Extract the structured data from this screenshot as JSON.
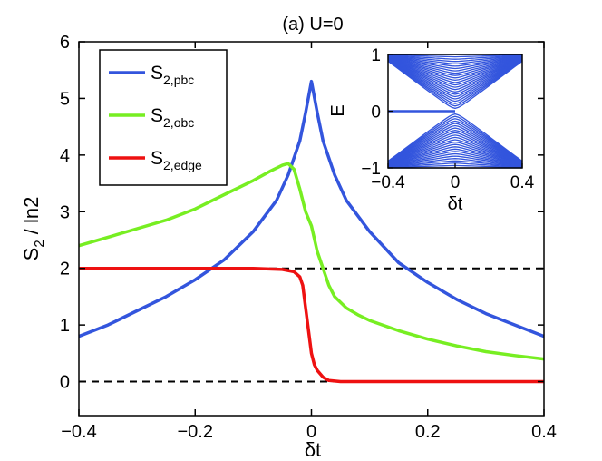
{
  "chart_data": [
    {
      "type": "line",
      "title": "(a) U=0",
      "xlabel": "δt",
      "ylabel": "S",
      "ylabel_sub": "2",
      "ylabel_suffix": " / ln2",
      "xlim": [
        -0.4,
        0.4
      ],
      "ylim": [
        -0.6,
        6
      ],
      "xticks": [
        -0.4,
        -0.2,
        0,
        0.2,
        0.4
      ],
      "xtick_labels": [
        "−0.4",
        "−0.2",
        "0",
        "0.2",
        "0.4"
      ],
      "yticks": [
        0,
        1,
        2,
        3,
        4,
        5,
        6
      ],
      "ytick_labels": [
        "0",
        "1",
        "2",
        "3",
        "4",
        "5",
        "6"
      ],
      "legend_position": "top-left",
      "series": [
        {
          "name": "S2,pbc",
          "label_main": "S",
          "label_sub": "2,pbc",
          "color": "#3355dd",
          "x": [
            -0.4,
            -0.35,
            -0.3,
            -0.25,
            -0.2,
            -0.15,
            -0.1,
            -0.06,
            -0.04,
            -0.02,
            -0.01,
            0,
            0.01,
            0.02,
            0.04,
            0.06,
            0.1,
            0.15,
            0.2,
            0.25,
            0.3,
            0.35,
            0.4
          ],
          "y": [
            0.8,
            1.0,
            1.25,
            1.5,
            1.8,
            2.15,
            2.65,
            3.2,
            3.65,
            4.25,
            4.75,
            5.3,
            4.75,
            4.25,
            3.65,
            3.2,
            2.65,
            2.1,
            1.75,
            1.45,
            1.2,
            1.0,
            0.8
          ]
        },
        {
          "name": "S2,obc",
          "label_main": "S",
          "label_sub": "2,obc",
          "color": "#77ee22",
          "x": [
            -0.4,
            -0.35,
            -0.3,
            -0.25,
            -0.2,
            -0.15,
            -0.1,
            -0.07,
            -0.05,
            -0.04,
            -0.03,
            -0.02,
            -0.01,
            0,
            0.01,
            0.02,
            0.03,
            0.04,
            0.06,
            0.08,
            0.1,
            0.15,
            0.2,
            0.25,
            0.3,
            0.35,
            0.4
          ],
          "y": [
            2.4,
            2.55,
            2.7,
            2.85,
            3.05,
            3.3,
            3.55,
            3.72,
            3.82,
            3.85,
            3.75,
            3.4,
            3.0,
            2.75,
            2.3,
            2.0,
            1.7,
            1.5,
            1.3,
            1.18,
            1.08,
            0.9,
            0.75,
            0.63,
            0.53,
            0.46,
            0.4
          ]
        },
        {
          "name": "S2,edge",
          "label_main": "S",
          "label_sub": "2,edge",
          "color": "#ee1111",
          "x": [
            -0.4,
            -0.3,
            -0.2,
            -0.1,
            -0.05,
            -0.03,
            -0.02,
            -0.015,
            -0.01,
            -0.005,
            0,
            0.005,
            0.01,
            0.02,
            0.03,
            0.05,
            0.1,
            0.2,
            0.3,
            0.4
          ],
          "y": [
            2.0,
            2.0,
            2.0,
            2.0,
            1.98,
            1.94,
            1.85,
            1.7,
            1.3,
            0.9,
            0.5,
            0.3,
            0.2,
            0.08,
            0.02,
            0.0,
            0.0,
            0.0,
            0.0,
            0.0
          ]
        }
      ],
      "reference_lines": [
        {
          "y": 2,
          "style": "dashed",
          "color": "#000000"
        },
        {
          "y": 0,
          "style": "dashed",
          "color": "#000000"
        }
      ]
    },
    {
      "type": "line",
      "title": "",
      "xlabel": "δt",
      "ylabel": "E",
      "xlim": [
        -0.4,
        0.4
      ],
      "ylim": [
        -1,
        1
      ],
      "xticks": [
        -0.4,
        0,
        0.4
      ],
      "xtick_labels": [
        "−0.4",
        "0",
        "0.4"
      ],
      "yticks": [
        -1,
        0,
        1
      ],
      "ytick_labels": [
        "−1",
        "0",
        "1"
      ],
      "color": "#3355dd",
      "band_min_gap": 0.05,
      "band_count": 24,
      "zero_mode": {
        "x_start": -0.4,
        "x_end": 0,
        "y": 0
      }
    }
  ]
}
